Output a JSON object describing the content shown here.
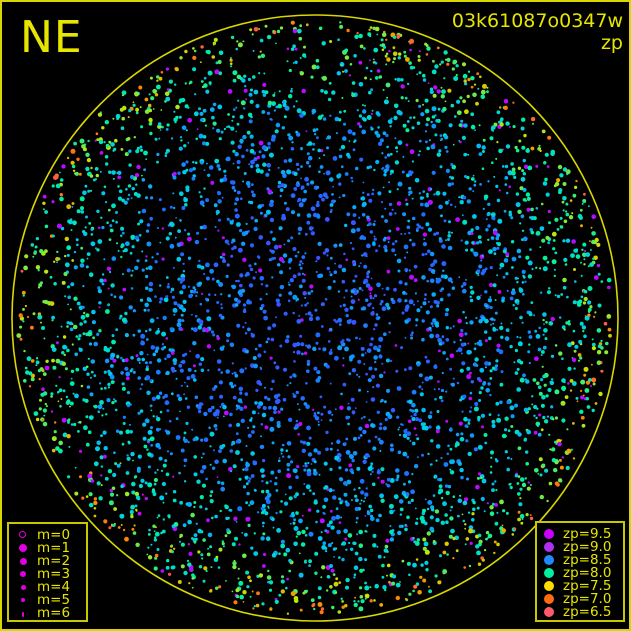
{
  "title": {
    "direction": "NE",
    "image_id": "03k61087o0347w",
    "mode": "zp"
  },
  "colors": {
    "frame": "#d8d800",
    "text": "#e6e600",
    "background": "#000000"
  },
  "legend_magnitude": {
    "entries": [
      {
        "label": "m=0",
        "hollow": true
      },
      {
        "label": "m=1"
      },
      {
        "label": "m=2"
      },
      {
        "label": "m=3"
      },
      {
        "label": "m=4"
      },
      {
        "label": "m=5"
      },
      {
        "label": "m=6"
      }
    ],
    "color": "#e000e0"
  },
  "legend_zp": {
    "entries": [
      {
        "label": "zp=9.5",
        "color": "#cc00ff"
      },
      {
        "label": "zp=9.0",
        "color": "#b030f0"
      },
      {
        "label": "zp=8.5",
        "color": "#2288ff"
      },
      {
        "label": "zp=8.0",
        "color": "#00f0a0"
      },
      {
        "label": "zp=7.5",
        "color": "#ffdd00"
      },
      {
        "label": "zp=7.0",
        "color": "#ff6a10"
      },
      {
        "label": "zp=6.5",
        "color": "#ff5a6a"
      }
    ]
  },
  "chart_data": {
    "type": "scatter",
    "projection": "all-sky circular (horizon circle)",
    "color_encodes": "zp",
    "size_encodes": "magnitude m",
    "zp_range": [
      6.5,
      9.5
    ],
    "magnitude_range": [
      0,
      6
    ],
    "pattern": "zp highest (~8.5-9.5, blue/violet) near center, falling to ~7.0-8.0 (cyan/green/yellow/orange) toward horizon",
    "grid": false
  }
}
